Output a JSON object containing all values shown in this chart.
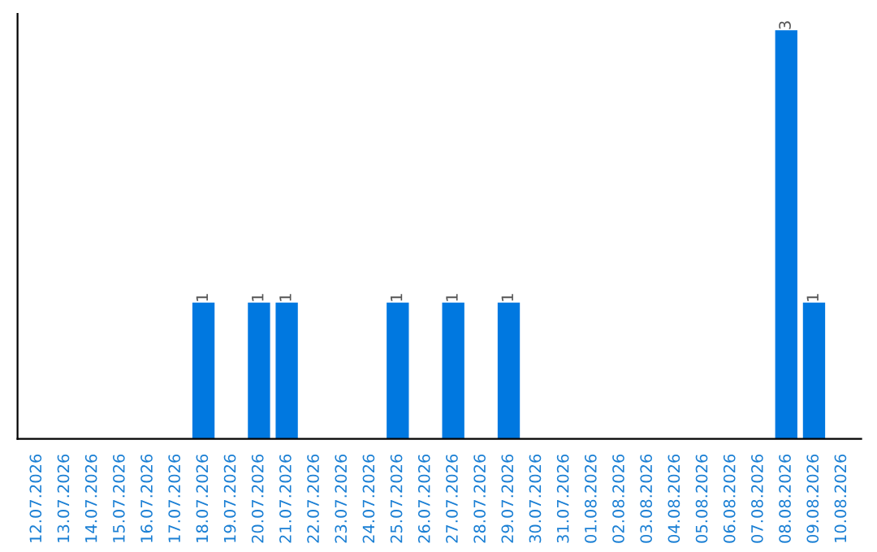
{
  "chart_data": {
    "type": "bar",
    "categories": [
      "12.07.2026",
      "13.07.2026",
      "14.07.2026",
      "15.07.2026",
      "16.07.2026",
      "17.07.2026",
      "18.07.2026",
      "19.07.2026",
      "20.07.2026",
      "21.07.2026",
      "22.07.2026",
      "23.07.2026",
      "24.07.2026",
      "25.07.2026",
      "26.07.2026",
      "27.07.2026",
      "28.07.2026",
      "29.07.2026",
      "30.07.2026",
      "31.07.2026",
      "01.08.2026",
      "02.08.2026",
      "03.08.2026",
      "04.08.2026",
      "05.08.2026",
      "06.08.2026",
      "07.08.2026",
      "08.08.2026",
      "09.08.2026",
      "10.08.2026"
    ],
    "values": [
      0,
      0,
      0,
      0,
      0,
      0,
      1,
      0,
      1,
      1,
      0,
      0,
      0,
      1,
      0,
      1,
      0,
      1,
      0,
      0,
      0,
      0,
      0,
      0,
      0,
      0,
      0,
      3,
      1,
      0
    ],
    "value_labels": [
      null,
      null,
      null,
      null,
      null,
      null,
      "1",
      null,
      "1",
      "1",
      null,
      null,
      null,
      "1",
      null,
      "1",
      null,
      "1",
      null,
      null,
      null,
      null,
      null,
      null,
      null,
      null,
      null,
      "3",
      "1",
      null
    ],
    "color": "#0078e0",
    "tick_labels": "x",
    "grid": false
  }
}
